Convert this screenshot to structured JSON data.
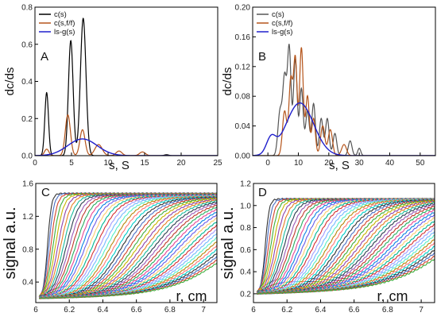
{
  "chart_data": [
    {
      "panel": "A",
      "type": "line",
      "xlabel": "s, S",
      "ylabel": "dc/ds",
      "xlim": [
        0,
        25
      ],
      "ylim": [
        0,
        0.8
      ],
      "xticks": [
        0,
        5,
        10,
        15,
        20,
        25
      ],
      "yticks": [
        0.0,
        0.2,
        0.4,
        0.6,
        0.8
      ],
      "legend_position": "top-left",
      "series": [
        {
          "name": "c(s)",
          "color": "#000000",
          "peaks": [
            [
              1.6,
              0.34,
              0.25
            ],
            [
              4.9,
              0.62,
              0.32
            ],
            [
              6.6,
              0.74,
              0.38
            ],
            [
              18.0,
              0.005,
              0.3
            ]
          ]
        },
        {
          "name": "c(s,f/f)",
          "color": "#b5541a",
          "peaks": [
            [
              1.6,
              0.035,
              0.3
            ],
            [
              4.5,
              0.22,
              0.35
            ],
            [
              6.5,
              0.14,
              0.35
            ],
            [
              8.7,
              0.06,
              0.5
            ],
            [
              11.5,
              0.025,
              0.4
            ],
            [
              14.7,
              0.02,
              0.4
            ]
          ]
        },
        {
          "name": "ls-g(s)",
          "color": "#1f1fcc",
          "peaks": [
            [
              6.5,
              0.09,
              2.0
            ]
          ]
        }
      ]
    },
    {
      "panel": "B",
      "type": "line",
      "xlabel": "s, S",
      "ylabel": "dc/ds",
      "xlim": [
        -5,
        55
      ],
      "ylim": [
        0,
        0.2
      ],
      "xticks": [
        0,
        10,
        20,
        30,
        40,
        50
      ],
      "yticks": [
        0.0,
        0.04,
        0.08,
        0.12,
        0.16,
        0.2
      ],
      "legend_position": "top-left",
      "series": [
        {
          "name": "c(s)",
          "color": "#555555",
          "peaks": [
            [
              4,
              0.06,
              0.7
            ],
            [
              5.5,
              0.1,
              0.6
            ],
            [
              7,
              0.145,
              0.6
            ],
            [
              9,
              0.13,
              0.6
            ],
            [
              11,
              0.09,
              0.6
            ],
            [
              13,
              0.06,
              0.6
            ],
            [
              15,
              0.07,
              0.6
            ],
            [
              17.5,
              0.05,
              0.6
            ],
            [
              19.5,
              0.05,
              0.6
            ],
            [
              22,
              0.03,
              0.6
            ],
            [
              27,
              0.02,
              0.6
            ],
            [
              30,
              0.01,
              0.5
            ]
          ]
        },
        {
          "name": "c(s,f/f)",
          "color": "#b5541a",
          "peaks": [
            [
              5.5,
              0.06,
              0.7
            ],
            [
              7.5,
              0.1,
              0.6
            ],
            [
              9,
              0.13,
              0.6
            ],
            [
              11,
              0.145,
              0.6
            ],
            [
              13,
              0.08,
              0.6
            ],
            [
              15,
              0.05,
              0.6
            ],
            [
              18,
              0.04,
              0.7
            ],
            [
              20.5,
              0.035,
              0.7
            ],
            [
              25,
              0.015,
              0.8
            ]
          ]
        },
        {
          "name": "ls-g(s)",
          "color": "#1f1fcc",
          "peaks": [
            [
              10.5,
              0.071,
              4.5
            ],
            [
              1,
              0.02,
              1.5
            ]
          ]
        }
      ]
    },
    {
      "panel": "C",
      "type": "line",
      "xlabel": "r, cm",
      "ylabel": "signal a.u.",
      "xlim": [
        6.0,
        7.08
      ],
      "ylim": [
        0.15,
        1.6
      ],
      "xticks": [
        6.0,
        6.2,
        6.4,
        6.6,
        6.8,
        7.0
      ],
      "yticks": [
        0.4,
        0.8,
        1.2,
        1.6
      ],
      "scan_count": 52,
      "baseline": 0.2,
      "plateau_first": 1.48,
      "plateau_last": 1.34,
      "boundary_start": 6.07,
      "boundary_end": 7.2
    },
    {
      "panel": "D",
      "type": "line",
      "xlabel": "r, cm",
      "ylabel": "signal a.u.",
      "xlim": [
        6.0,
        7.08
      ],
      "ylim": [
        0.12,
        1.2
      ],
      "xticks": [
        6.0,
        6.2,
        6.4,
        6.6,
        6.8,
        7.0
      ],
      "yticks": [
        0.2,
        0.4,
        0.6,
        0.8,
        1.0,
        1.2
      ],
      "scan_count": 52,
      "baseline": 0.2,
      "plateau_first": 1.06,
      "plateau_last": 1.0,
      "boundary_start": 6.07,
      "boundary_end": 7.2
    }
  ]
}
